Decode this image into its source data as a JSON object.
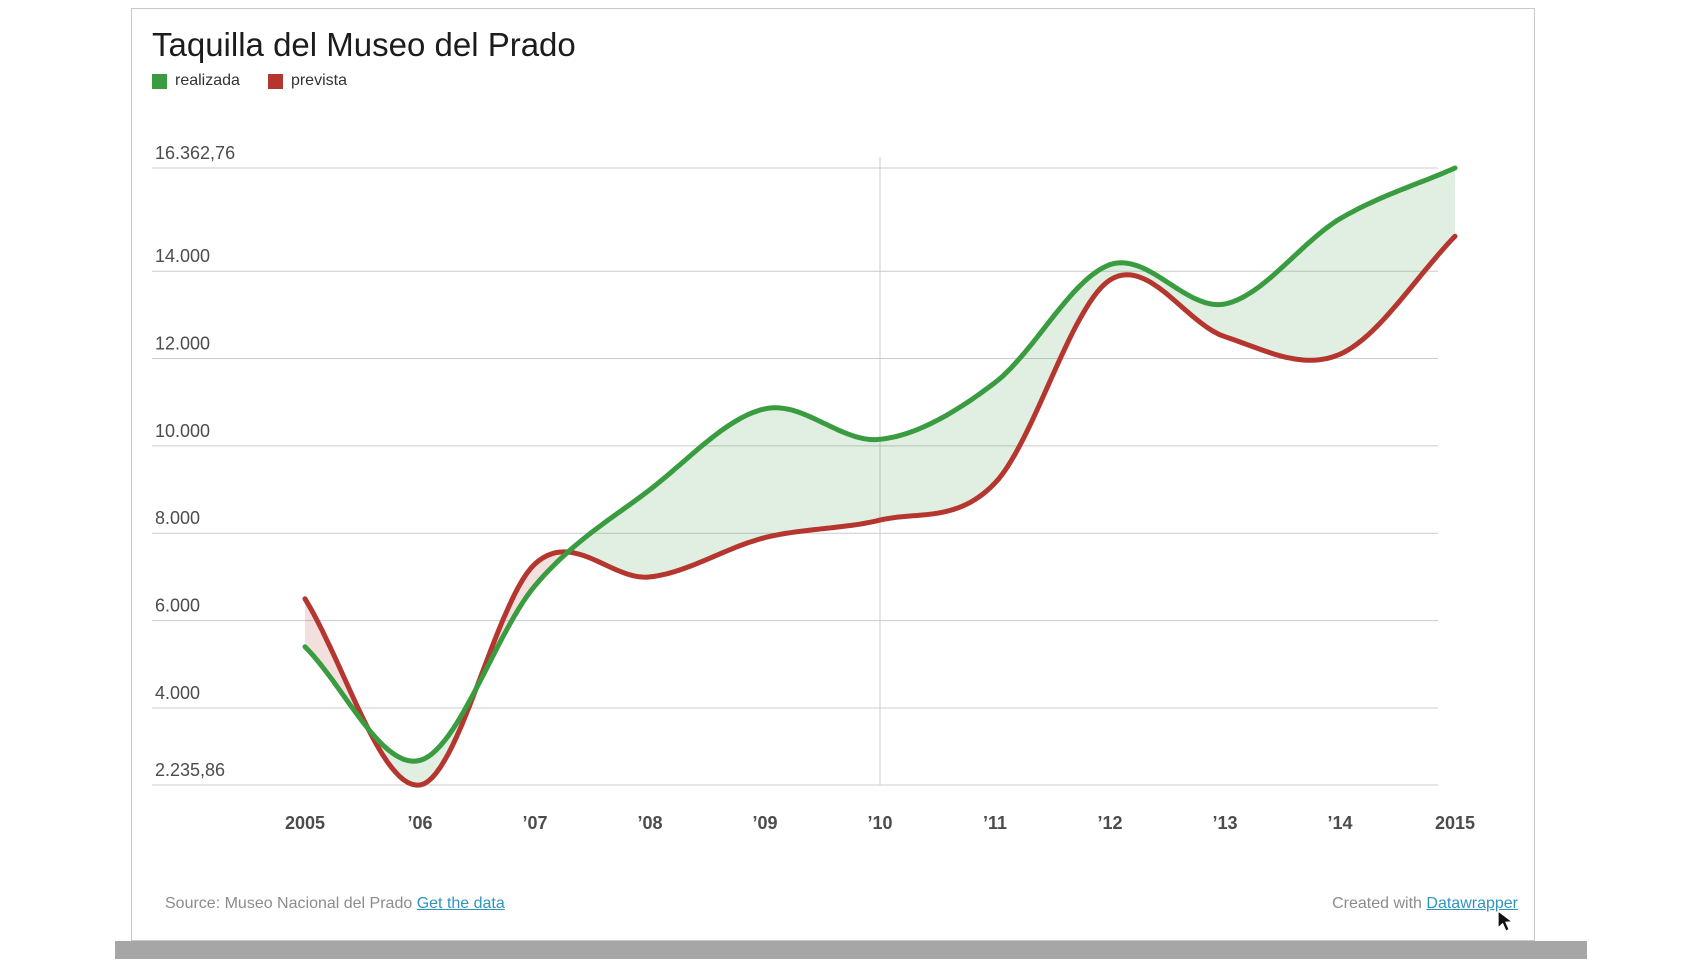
{
  "header": {
    "title": "Taquilla del Museo del Prado"
  },
  "legend": [
    {
      "label": "realizada",
      "color": "#3a9c40"
    },
    {
      "label": "prevista",
      "color": "#b5352f"
    }
  ],
  "footer": {
    "source_text": "Source: Museo Nacional del Prado",
    "source_link": "Get the data",
    "created_text": "Created with",
    "created_link": "Datawrapper"
  },
  "chart_data": {
    "type": "line",
    "title": "Taquilla del Museo del Prado",
    "x": [
      2005,
      2006,
      2007,
      2008,
      2009,
      2010,
      2011,
      2012,
      2013,
      2014,
      2015
    ],
    "x_tick_labels": [
      "2005",
      "’06",
      "’07",
      "’08",
      "’09",
      "’10",
      "’11",
      "’12",
      "’13",
      "’14",
      "2015"
    ],
    "x_gridlines": [
      2010
    ],
    "y_ticks": [
      {
        "label": "16.362,76",
        "value": 16362.76
      },
      {
        "label": "14.000",
        "value": 14000
      },
      {
        "label": "12.000",
        "value": 12000
      },
      {
        "label": "10.000",
        "value": 10000
      },
      {
        "label": "8.000",
        "value": 8000
      },
      {
        "label": "6.000",
        "value": 6000
      },
      {
        "label": "4.000",
        "value": 4000
      },
      {
        "label": "2.235,86",
        "value": 2235.86
      }
    ],
    "ylim": [
      2235.86,
      16362.76
    ],
    "legend_position": "top-left",
    "grid": "horizontal",
    "grid_color": "#cccccc",
    "tick_color": "#4c4c4c",
    "series": [
      {
        "name": "realizada",
        "color": "#3a9c40",
        "fill": "rgba(62,156,66,0.16)",
        "values": [
          5400,
          2800,
          6800,
          9000,
          10850,
          10150,
          11450,
          14150,
          13250,
          15200,
          16362.76
        ]
      },
      {
        "name": "prevista",
        "color": "#b5352f",
        "fill": "rgba(181,53,47,0.16)",
        "values": [
          6500,
          2235.86,
          7300,
          7000,
          7900,
          8300,
          9150,
          13800,
          12500,
          12100,
          14800
        ]
      }
    ]
  }
}
